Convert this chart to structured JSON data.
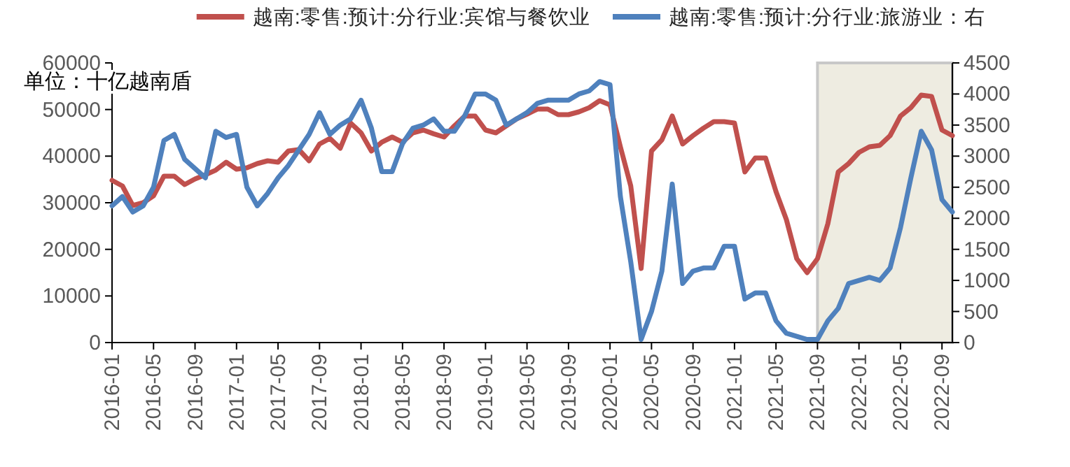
{
  "chart_data": {
    "type": "line",
    "legend": "top",
    "annotations": [
      "单位：十亿越南盾"
    ],
    "x": [
      "2016-01",
      "2016-02",
      "2016-03",
      "2016-04",
      "2016-05",
      "2016-06",
      "2016-07",
      "2016-08",
      "2016-09",
      "2016-10",
      "2016-11",
      "2016-12",
      "2017-01",
      "2017-02",
      "2017-03",
      "2017-04",
      "2017-05",
      "2017-06",
      "2017-07",
      "2017-08",
      "2017-09",
      "2017-10",
      "2017-11",
      "2017-12",
      "2018-01",
      "2018-02",
      "2018-03",
      "2018-04",
      "2018-05",
      "2018-06",
      "2018-07",
      "2018-08",
      "2018-09",
      "2018-10",
      "2018-11",
      "2018-12",
      "2019-01",
      "2019-02",
      "2019-03",
      "2019-04",
      "2019-05",
      "2019-06",
      "2019-07",
      "2019-08",
      "2019-09",
      "2019-10",
      "2019-11",
      "2019-12",
      "2020-01",
      "2020-02",
      "2020-03",
      "2020-04",
      "2020-05",
      "2020-06",
      "2020-07",
      "2020-08",
      "2020-09",
      "2020-10",
      "2020-11",
      "2020-12",
      "2021-01",
      "2021-02",
      "2021-03",
      "2021-04",
      "2021-05",
      "2021-06",
      "2021-07",
      "2021-08",
      "2021-09",
      "2021-10",
      "2021-11",
      "2021-12",
      "2022-01",
      "2022-02",
      "2022-03",
      "2022-04",
      "2022-05",
      "2022-06",
      "2022-07",
      "2022-08",
      "2022-09",
      "2022-10"
    ],
    "series": [
      {
        "name": "越南:零售:预计:分行业:宾馆与餐饮业",
        "color": "#c0504d",
        "values": [
          34800,
          33600,
          29400,
          30000,
          31500,
          35700,
          35700,
          33900,
          35100,
          36000,
          37000,
          38700,
          37200,
          37500,
          38400,
          39000,
          38700,
          41100,
          41400,
          39000,
          42600,
          43800,
          41700,
          47100,
          45000,
          41100,
          43000,
          44100,
          43000,
          45000,
          45600,
          44800,
          44100,
          46500,
          48600,
          48600,
          45600,
          45000,
          46500,
          48000,
          49000,
          50100,
          50100,
          48900,
          48900,
          49500,
          50400,
          51900,
          51000,
          42000,
          33600,
          15900,
          41100,
          43500,
          48600,
          42600,
          44400,
          46000,
          47400,
          47400,
          47100,
          36600,
          39600,
          39600,
          32400,
          26400,
          18000,
          15000,
          18000,
          25500,
          36600,
          38400,
          40800,
          42000,
          42300,
          44400,
          48600,
          50400,
          53100,
          52800,
          45600,
          44400
        ]
      },
      {
        "name": "越南:零售:预计:分行业:旅游业：右",
        "color": "#4f81bd",
        "axis": "y2",
        "values": [
          2200,
          2350,
          2100,
          2200,
          2500,
          3250,
          3350,
          2950,
          2800,
          2650,
          3400,
          3300,
          3350,
          2500,
          2200,
          2400,
          2650,
          2850,
          3100,
          3350,
          3700,
          3350,
          3500,
          3600,
          3900,
          3450,
          2750,
          2750,
          3200,
          3450,
          3500,
          3600,
          3400,
          3400,
          3650,
          4000,
          4000,
          3900,
          3500,
          3600,
          3700,
          3850,
          3900,
          3900,
          3900,
          4000,
          4050,
          4200,
          4150,
          2350,
          1300,
          50,
          500,
          1150,
          2550,
          950,
          1150,
          1200,
          1200,
          1550,
          1550,
          700,
          800,
          800,
          350,
          150,
          100,
          50,
          50,
          350,
          550,
          950,
          1000,
          1050,
          1000,
          1200,
          1850,
          2650,
          3400,
          3100,
          2300,
          2100
        ]
      }
    ],
    "xlim": [
      "2016-01",
      "2022-10"
    ],
    "xticks": [
      "2016-01",
      "2016-05",
      "2016-09",
      "2017-01",
      "2017-05",
      "2017-09",
      "2018-01",
      "2018-05",
      "2018-09",
      "2019-01",
      "2019-05",
      "2019-09",
      "2020-01",
      "2020-05",
      "2020-09",
      "2021-01",
      "2021-05",
      "2021-09",
      "2022-01",
      "2022-05",
      "2022-09"
    ],
    "ylim": [
      0,
      60000
    ],
    "yticks": [
      0,
      10000,
      20000,
      30000,
      40000,
      50000,
      60000
    ],
    "y2lim": [
      0,
      4500
    ],
    "y2ticks": [
      0,
      500,
      1000,
      1500,
      2000,
      2500,
      3000,
      3500,
      4000,
      4500
    ],
    "bands": [
      {
        "axis": "x",
        "from": "2021-09",
        "to": "2022-10",
        "color": "#eeece1"
      }
    ]
  }
}
